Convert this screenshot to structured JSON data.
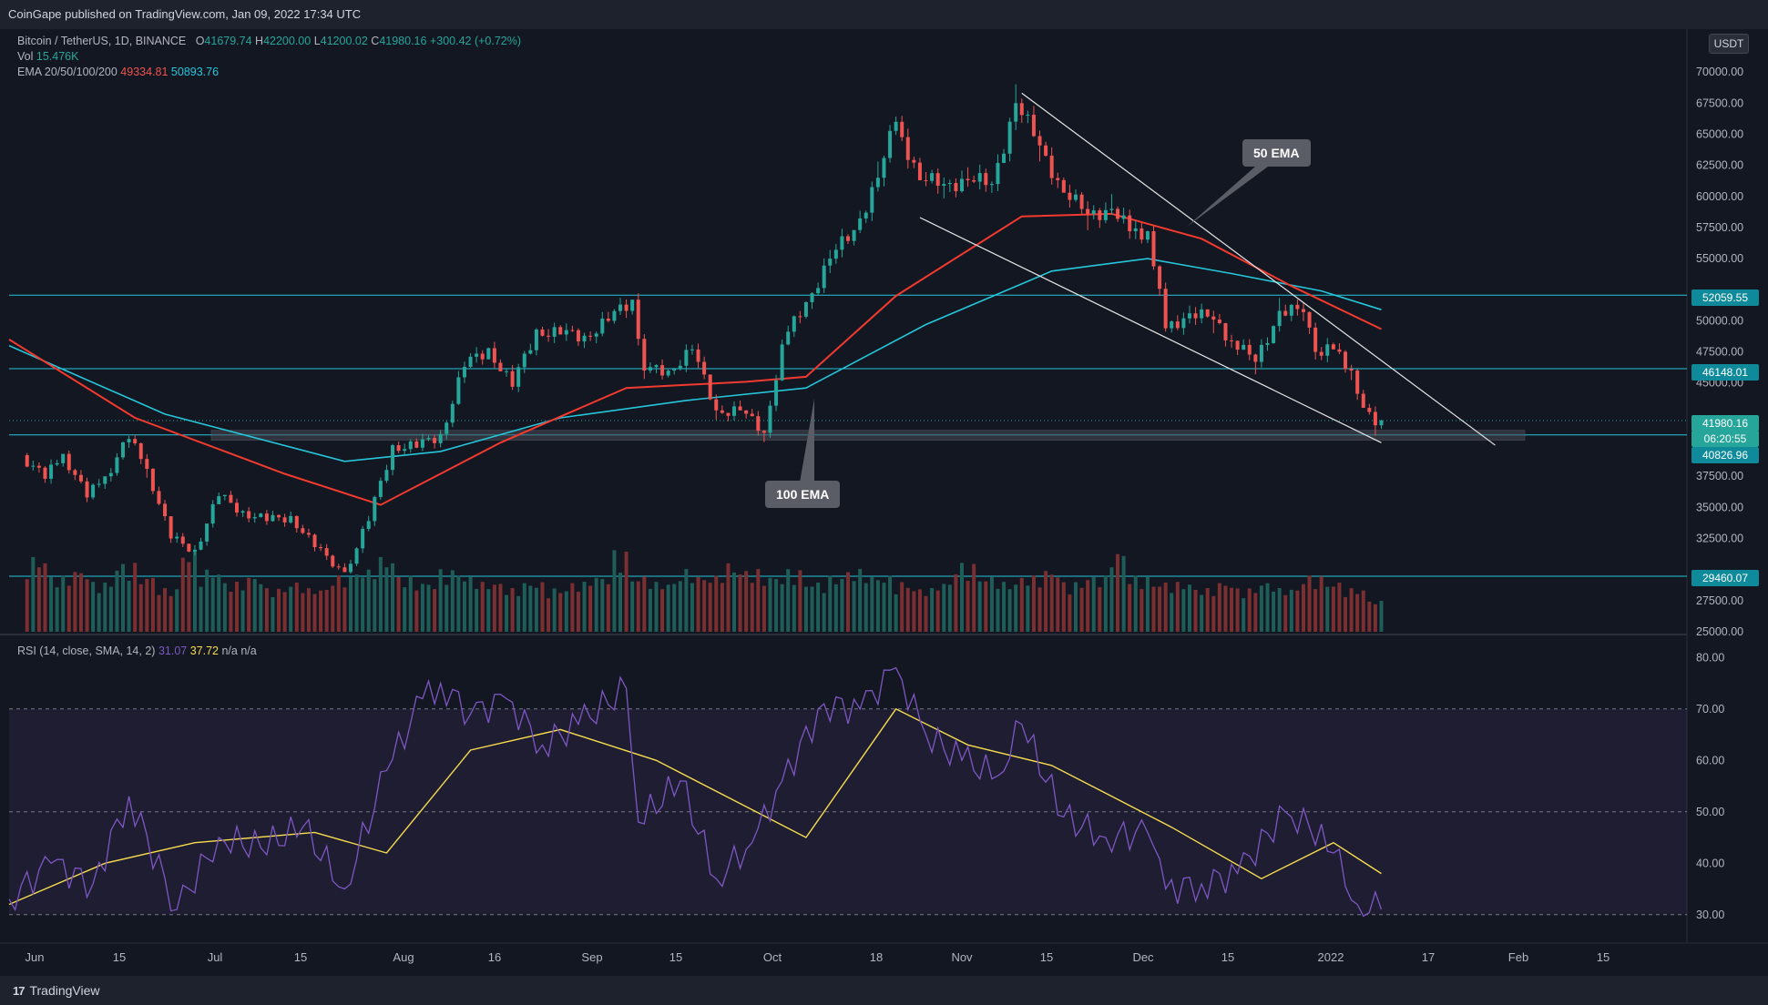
{
  "header": {
    "published": "CoinGape published on TradingView.com, Jan 09, 2022 17:34 UTC"
  },
  "legend": {
    "symbol": "Bitcoin / TetherUS, 1D, BINANCE",
    "open_label": "O",
    "open": "41679.74",
    "high_label": "H",
    "high": "42200.00",
    "low_label": "L",
    "low": "41200.02",
    "close_label": "C",
    "close": "41980.16",
    "change": "+300.42 (+0.72%)",
    "vol_label": "Vol",
    "vol": "15.476K",
    "ema_label": "EMA 20/50/100/200",
    "ema_50": "49334.81",
    "ema_100": "50893.76",
    "rsi_label": "RSI (14, close, SMA, 14, 2)",
    "rsi_value": "31.07",
    "rsi_sma": "37.72",
    "rsi_na1": "n/a",
    "rsi_na2": "n/a"
  },
  "annotations": {
    "ema50": "50 EMA",
    "ema100": "100 EMA"
  },
  "price_tags": {
    "currency": "USDT",
    "r1": "52059.55",
    "r2": "46148.01",
    "last": "41980.16",
    "countdown": "06:20:55",
    "s1": "40826.96",
    "s2": "29460.07"
  },
  "footer": {
    "brand": "TradingView"
  },
  "colors": {
    "background": "#131722",
    "up": "#26a69a",
    "down": "#ef5350",
    "ema50": "#f23a2f",
    "ema100": "#26c6da",
    "rsi": "#7e57c2",
    "rsi_sma": "#f7dc4f",
    "level": "#26c6da"
  },
  "chart_data": [
    {
      "type": "candlestick",
      "title": "Bitcoin / TetherUS, 1D, BINANCE",
      "y_axis_labels": [
        "70000.00",
        "67500.00",
        "65000.00",
        "62500.00",
        "60000.00",
        "57500.00",
        "55000.00",
        "50000.00",
        "47500.00",
        "45000.00",
        "37500.00",
        "35000.00",
        "32500.00",
        "27500.00",
        "25000.00"
      ],
      "x_axis_labels": [
        "Jun",
        "15",
        "Jul",
        "15",
        "Aug",
        "16",
        "Sep",
        "15",
        "Oct",
        "18",
        "Nov",
        "15",
        "Dec",
        "15",
        "2022",
        "17",
        "Feb",
        "15"
      ],
      "ylim": [
        25000,
        72500
      ],
      "x_range": [
        "2021-05-25",
        "2022-03-01"
      ],
      "closes": [
        [
          "2021-05-27",
          39200
        ],
        [
          "2021-05-31",
          37300
        ],
        [
          "2021-06-03",
          39300
        ],
        [
          "2021-06-07",
          35800
        ],
        [
          "2021-06-10",
          37500
        ],
        [
          "2021-06-14",
          40500
        ],
        [
          "2021-06-17",
          38100
        ],
        [
          "2021-06-21",
          32500
        ],
        [
          "2021-06-25",
          31600
        ],
        [
          "2021-06-29",
          35900
        ],
        [
          "2021-07-03",
          34700
        ],
        [
          "2021-07-07",
          33900
        ],
        [
          "2021-07-11",
          34300
        ],
        [
          "2021-07-15",
          31800
        ],
        [
          "2021-07-20",
          29800
        ],
        [
          "2021-07-24",
          33900
        ],
        [
          "2021-07-28",
          40000
        ],
        [
          "2021-08-01",
          39800
        ],
        [
          "2021-08-05",
          40900
        ],
        [
          "2021-08-09",
          46300
        ],
        [
          "2021-08-13",
          47800
        ],
        [
          "2021-08-17",
          44700
        ],
        [
          "2021-08-21",
          49300
        ],
        [
          "2021-08-25",
          48900
        ],
        [
          "2021-08-29",
          48800
        ],
        [
          "2021-09-02",
          50000
        ],
        [
          "2021-09-06",
          51700
        ],
        [
          "2021-09-08",
          46000
        ],
        [
          "2021-09-12",
          46000
        ],
        [
          "2021-09-16",
          47700
        ],
        [
          "2021-09-20",
          42800
        ],
        [
          "2021-09-24",
          42800
        ],
        [
          "2021-09-28",
          41000
        ],
        [
          "2021-10-01",
          48100
        ],
        [
          "2021-10-05",
          51500
        ],
        [
          "2021-10-09",
          55000
        ],
        [
          "2021-10-13",
          57300
        ],
        [
          "2021-10-17",
          61500
        ],
        [
          "2021-10-20",
          66000
        ],
        [
          "2021-10-24",
          61300
        ],
        [
          "2021-10-28",
          61000
        ],
        [
          "2021-11-01",
          61300
        ],
        [
          "2021-11-05",
          61000
        ],
        [
          "2021-11-09",
          67500
        ],
        [
          "2021-11-13",
          64100
        ],
        [
          "2021-11-17",
          60300
        ],
        [
          "2021-11-21",
          58600
        ],
        [
          "2021-11-25",
          59000
        ],
        [
          "2021-11-28",
          57200
        ],
        [
          "2021-12-01",
          57200
        ],
        [
          "2021-12-04",
          49400
        ],
        [
          "2021-12-08",
          50600
        ],
        [
          "2021-12-12",
          50100
        ],
        [
          "2021-12-15",
          48400
        ],
        [
          "2021-12-19",
          46700
        ],
        [
          "2021-12-23",
          50800
        ],
        [
          "2021-12-27",
          50700
        ],
        [
          "2021-12-29",
          47500
        ],
        [
          "2022-01-01",
          47700
        ],
        [
          "2022-01-04",
          46000
        ],
        [
          "2022-01-06",
          43000
        ],
        [
          "2022-01-08",
          41600
        ],
        [
          "2022-01-09",
          41980
        ]
      ],
      "ema50": [
        [
          "2021-05-25",
          48500
        ],
        [
          "2021-06-15",
          42200
        ],
        [
          "2021-07-10",
          37700
        ],
        [
          "2021-07-26",
          35200
        ],
        [
          "2021-08-15",
          40200
        ],
        [
          "2021-09-05",
          44600
        ],
        [
          "2021-09-25",
          45100
        ],
        [
          "2021-10-05",
          45500
        ],
        [
          "2021-10-20",
          52000
        ],
        [
          "2021-11-10",
          58400
        ],
        [
          "2021-11-25",
          58600
        ],
        [
          "2021-12-10",
          56600
        ],
        [
          "2021-12-25",
          52800
        ],
        [
          "2022-01-09",
          49335
        ]
      ],
      "ema100": [
        [
          "2021-05-25",
          48000
        ],
        [
          "2021-06-20",
          42500
        ],
        [
          "2021-07-20",
          38700
        ],
        [
          "2021-08-05",
          39500
        ],
        [
          "2021-08-25",
          42200
        ],
        [
          "2021-09-15",
          43600
        ],
        [
          "2021-10-05",
          44600
        ],
        [
          "2021-10-25",
          49700
        ],
        [
          "2021-11-15",
          54000
        ],
        [
          "2021-12-01",
          55000
        ],
        [
          "2021-12-15",
          53800
        ],
        [
          "2021-12-30",
          52400
        ],
        [
          "2022-01-09",
          50894
        ]
      ],
      "horizontal_levels": [
        52059.55,
        46148.01,
        40826.96,
        29460.07
      ],
      "trendlines": [
        {
          "from": [
            "2021-11-10",
            68300
          ],
          "to": [
            "2022-01-28",
            40000
          ]
        },
        {
          "from": [
            "2021-10-24",
            58300
          ],
          "to": [
            "2022-01-09",
            40200
          ]
        }
      ],
      "last_price": 41980.16
    },
    {
      "type": "bar",
      "title": "Vol",
      "volume_levels": [
        0.9,
        0.6,
        0.7,
        0.5,
        0.8,
        0.6,
        0.4,
        1.0,
        0.7,
        0.5,
        0.6,
        0.4,
        0.5,
        0.4,
        0.6,
        0.7,
        0.9,
        0.6,
        0.5,
        0.7,
        0.6,
        0.5,
        0.4,
        0.5,
        0.4,
        0.5,
        0.6,
        1.0,
        0.6,
        0.5,
        0.7,
        0.6,
        0.8,
        0.7,
        0.6,
        0.7,
        0.5,
        0.6,
        0.7,
        0.6,
        0.5,
        0.4,
        0.5,
        0.8,
        0.6,
        0.5,
        0.6,
        0.7,
        0.5,
        0.6,
        1.0,
        0.6,
        0.5,
        0.5,
        0.4,
        0.5,
        0.4,
        0.5,
        0.4,
        0.6,
        0.5,
        0.4,
        0.2
      ]
    },
    {
      "type": "line",
      "title": "RSI (14, close, SMA, 14, 2)",
      "y_axis_labels": [
        "80.00",
        "70.00",
        "60.00",
        "50.00",
        "40.00",
        "30.00"
      ],
      "ylim": [
        25,
        82
      ],
      "bands": [
        70,
        50,
        30
      ],
      "rsi": [
        [
          "2021-05-25",
          33
        ],
        [
          "2021-06-01",
          40
        ],
        [
          "2021-06-08",
          36
        ],
        [
          "2021-06-14",
          53
        ],
        [
          "2021-06-22",
          31
        ],
        [
          "2021-06-29",
          45
        ],
        [
          "2021-07-06",
          43
        ],
        [
          "2021-07-13",
          47
        ],
        [
          "2021-07-20",
          35
        ],
        [
          "2021-07-27",
          58
        ],
        [
          "2021-08-02",
          72
        ],
        [
          "2021-08-05",
          75
        ],
        [
          "2021-08-10",
          69
        ],
        [
          "2021-08-16",
          72
        ],
        [
          "2021-08-22",
          63
        ],
        [
          "2021-08-28",
          67
        ],
        [
          "2021-09-05",
          74
        ],
        [
          "2021-09-07",
          48
        ],
        [
          "2021-09-14",
          56
        ],
        [
          "2021-09-20",
          37
        ],
        [
          "2021-09-26",
          44
        ],
        [
          "2021-10-01",
          56
        ],
        [
          "2021-10-08",
          71
        ],
        [
          "2021-10-14",
          70
        ],
        [
          "2021-10-20",
          78
        ],
        [
          "2021-10-25",
          65
        ],
        [
          "2021-10-31",
          60
        ],
        [
          "2021-11-06",
          57
        ],
        [
          "2021-11-10",
          67
        ],
        [
          "2021-11-17",
          49
        ],
        [
          "2021-11-24",
          45
        ],
        [
          "2021-12-01",
          46
        ],
        [
          "2021-12-04",
          35
        ],
        [
          "2021-12-10",
          36
        ],
        [
          "2021-12-16",
          38
        ],
        [
          "2021-12-24",
          50
        ],
        [
          "2021-12-28",
          47
        ],
        [
          "2022-01-01",
          42
        ],
        [
          "2022-01-05",
          32
        ],
        [
          "2022-01-09",
          31
        ]
      ],
      "rsi_sma": [
        [
          "2021-05-25",
          32
        ],
        [
          "2021-06-10",
          40
        ],
        [
          "2021-06-25",
          44
        ],
        [
          "2021-07-15",
          46
        ],
        [
          "2021-07-27",
          42
        ],
        [
          "2021-08-10",
          62
        ],
        [
          "2021-08-25",
          66
        ],
        [
          "2021-09-10",
          60
        ],
        [
          "2021-09-25",
          51
        ],
        [
          "2021-10-05",
          45
        ],
        [
          "2021-10-20",
          70
        ],
        [
          "2021-11-01",
          63
        ],
        [
          "2021-11-15",
          59
        ],
        [
          "2021-11-25",
          53
        ],
        [
          "2021-12-05",
          47
        ],
        [
          "2021-12-20",
          37
        ],
        [
          "2022-01-01",
          44
        ],
        [
          "2022-01-09",
          38
        ]
      ]
    }
  ]
}
